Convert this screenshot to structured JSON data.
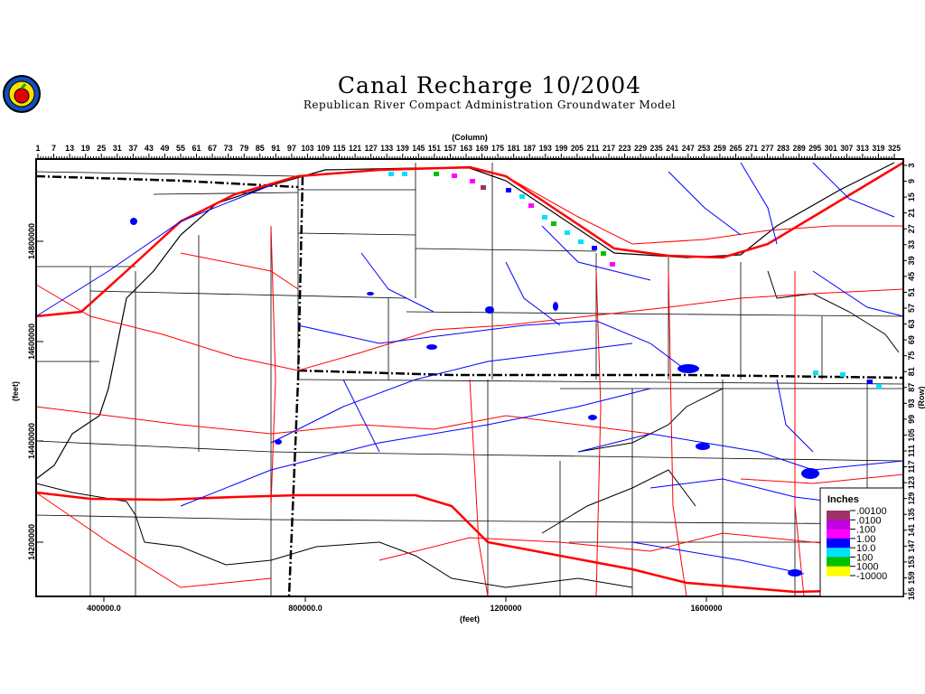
{
  "title": "Canal Recharge 10/2004",
  "subtitle": "Republican River Compact Administration Groundwater Model",
  "logo_text": "RRCA",
  "axes": {
    "top_label": "(Column)",
    "right_label": "(Row)",
    "left_label": "(feet)",
    "bottom_label": "(feet)",
    "column_ticks": [
      "1",
      "7",
      "13",
      "19",
      "25",
      "31",
      "37",
      "43",
      "49",
      "55",
      "61",
      "67",
      "73",
      "79",
      "85",
      "91",
      "97",
      "103",
      "109",
      "115",
      "121",
      "127",
      "133",
      "139",
      "145",
      "151",
      "157",
      "163",
      "169",
      "175",
      "181",
      "187",
      "193",
      "199",
      "205",
      "211",
      "217",
      "223",
      "229",
      "235",
      "241",
      "247",
      "253",
      "259",
      "265",
      "271",
      "277",
      "283",
      "289",
      "295",
      "301",
      "307",
      "313",
      "319",
      "325"
    ],
    "row_ticks": [
      "3",
      "9",
      "15",
      "21",
      "27",
      "33",
      "39",
      "45",
      "51",
      "57",
      "63",
      "69",
      "75",
      "81",
      "87",
      "93",
      "99",
      "105",
      "111",
      "117",
      "123",
      "129",
      "135",
      "141",
      "147",
      "153",
      "159",
      "165"
    ],
    "y_ticks": [
      "14800000",
      "14600000",
      "14400000",
      "14200000"
    ],
    "x_ticks": [
      "400000.0",
      "800000.0",
      "1200000",
      "1600000"
    ]
  },
  "legend": {
    "title": "Inches",
    "labels": [
      ".00100",
      ".0100",
      ".100",
      "1.00",
      "10.0",
      "100",
      "1000",
      "-10000"
    ],
    "colors": [
      "#a0306a",
      "#c000e0",
      "#ff00ff",
      "#0000ff",
      "#00e0ff",
      "#00c000",
      "#ffff00",
      "#ff6000"
    ]
  },
  "colors": {
    "rivers": "#0000ff",
    "roads": "#ff0000",
    "boundaries": "#000000"
  }
}
